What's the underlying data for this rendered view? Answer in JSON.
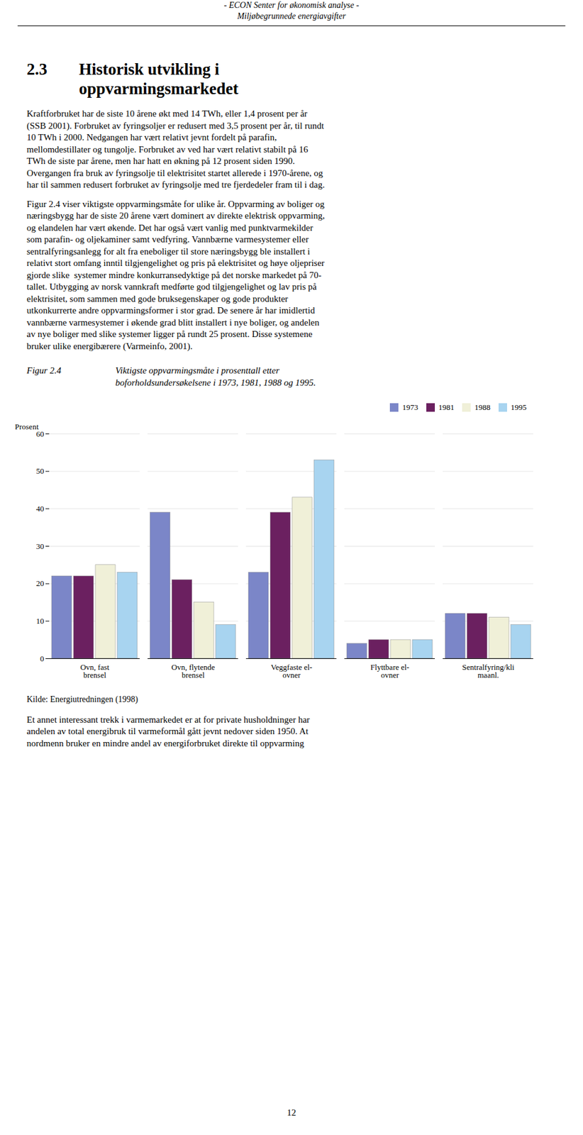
{
  "page": {
    "header": [
      "- ECON  Senter for økonomisk analyse -",
      "Miljøbegrunnede energiavgifter"
    ],
    "section_number": "2.3",
    "section_title": [
      "Historisk utvikling i",
      "oppvarmingsmarkedet"
    ],
    "body": [
      "Kraftforbruket har de siste 10 årene økt med 14 TWh, eller 1,4 prosent per år\n(SSB 2001). Forbruket av fyringsoljer er redusert med 3,5 prosent per år, til rundt\n10 TWh i 2000. Nedgangen har vært relativt jevnt fordelt på parafin,\nmellomdestillater og tungolje. Forbruket av ved har vært relativt stabilt på 16\nTWh de siste par årene, men har hatt en økning på 12 prosent siden 1990.\nOvergangen fra bruk av fyringsolje til elektrisitet startet allerede i 1970-årene, og\nhar til sammen redusert forbruket av fyringsolje med tre fjerdedeler fram til i dag.",
      "Figur 2.4 viser viktigste oppvarmingsmåte for ulike år. Oppvarming av boliger og\nnæringsbygg har de siste 20 årene vært dominert av direkte elektrisk oppvarming,\nog elandelen har vært økende. Det har også vært vanlig med punktvarmekilder\nsom parafin- og oljekaminer samt vedfyring. Vannbærne varmesystemer eller\nsentralfyringsanlegg for alt fra eneboliger til store næringsbygg ble installert i\nrelativt stort omfang inntil tilgjengelighet og pris på elektrisitet og høye oljepriser\ngjorde slike  systemer mindre konkurransedyktige på det norske markedet på 70-\ntallet. Utbygging av norsk vannkraft medførte god tilgjengelighet og lav pris på\nelektrisitet, som sammen med gode bruksegenskaper og gode produkter\nutkonkurrerte andre oppvarmingsformer i stor grad. De senere år har imidlertid\nvannbærne varmesystemer i økende grad blitt installert i nye boliger, og andelen\nav nye boliger med slike systemer ligger på rundt 25 prosent. Disse systemene\nbruker ulike energibærere (Varmeinfo, 2001)."
    ],
    "figure_label": "Figur 2.4",
    "caption": [
      "Viktigste oppvarmingsmåte i prosenttall etter",
      "boforholdsundersøkelsene i 1973, 1981, 1988 og 1995."
    ],
    "source": "Kilde: Energiutredningen (1998)",
    "body_after": "Et annet interessant trekk i varmemarkedet er at for private husholdninger har\nandelen av total energibruk til varmeformål gått jevnt nedover siden 1950. At\nnordmenn bruker en mindre andel av energiforbruket direkte til oppvarming",
    "page_number": "12"
  },
  "chart_data": {
    "type": "bar",
    "categories": [
      "Ovn, fast\nbrensel",
      "Ovn, flytende\nbrensel",
      "Veggfaste el-\novner",
      "Flyttbare el-\novner",
      "Sentralfyring/kli\nmaanl."
    ],
    "series": [
      {
        "name": "1973",
        "color": "#7b86c8",
        "values": [
          22,
          39,
          23,
          4,
          12
        ]
      },
      {
        "name": "1981",
        "color": "#6b2060",
        "values": [
          22,
          21,
          39,
          5,
          12
        ]
      },
      {
        "name": "1988",
        "color": "#f0f0d8",
        "values": [
          25,
          15,
          43,
          5,
          11
        ]
      },
      {
        "name": "1995",
        "color": "#a8d4f0",
        "values": [
          23,
          9,
          53,
          5,
          9
        ]
      }
    ],
    "ylabel": "Prosent",
    "ylim": [
      0,
      60
    ],
    "yticks": [
      0,
      10,
      20,
      30,
      40,
      50,
      60
    ],
    "grid": true,
    "legend": "upper right"
  }
}
